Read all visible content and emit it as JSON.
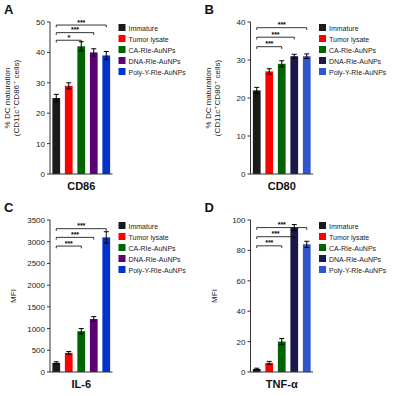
{
  "chart_data": [
    {
      "type": "bar",
      "title": "A",
      "xlabel": "CD86",
      "ylabel": "% DC maturation\n(CD11c⁺CD86⁺ cells)",
      "categories": [
        "Immature",
        "Tumor lysate",
        "CA-RIe-AuNPs",
        "DNA-RIe-AuNPs",
        "Poly-Y-RIe-AuNPs"
      ],
      "values": [
        25,
        29,
        42,
        40,
        39
      ],
      "errors": [
        1.2,
        1.0,
        1.5,
        1.2,
        1.3
      ],
      "colors": [
        "#1a1a1a",
        "#ff0000",
        "#006400",
        "#5c0075",
        "#0033cc"
      ],
      "ylim": [
        0,
        50
      ],
      "yticks": [
        0,
        10,
        20,
        30,
        40,
        50
      ],
      "annotations": [
        {
          "label": "*",
          "y": 44,
          "from": "Immature",
          "to": "CA-RIe-AuNPs"
        },
        {
          "label": "***",
          "y": 46.5,
          "from": "Immature",
          "to": "DNA-RIe-AuNPs"
        },
        {
          "label": "***",
          "y": 49,
          "from": "Immature",
          "to": "Poly-Y-RIe-AuNPs"
        }
      ],
      "legend": "right",
      "grid": false,
      "tick_labels": "y"
    },
    {
      "type": "bar",
      "title": "B",
      "xlabel": "CD80",
      "ylabel": "% DC maturation\n(CD11c⁺CD80⁺ cells)",
      "categories": [
        "Immature",
        "Tumor lysate",
        "CA-RIe-AuNPs",
        "DNA-RIe-AuNPs",
        "Poly-Y-RIe-AuNPs"
      ],
      "values": [
        22,
        27,
        29,
        31,
        31
      ],
      "errors": [
        0.8,
        0.7,
        0.8,
        0.5,
        0.6
      ],
      "colors": [
        "#1a1a1a",
        "#ff0000",
        "#006400",
        "#1a1a4a",
        "#3355cc"
      ],
      "ylim": [
        0,
        40
      ],
      "yticks": [
        0,
        10,
        20,
        30,
        40
      ],
      "annotations": [
        {
          "label": "***",
          "y": 33.5,
          "from": "Immature",
          "to": "CA-RIe-AuNPs"
        },
        {
          "label": "***",
          "y": 36,
          "from": "Immature",
          "to": "DNA-RIe-AuNPs"
        },
        {
          "label": "***",
          "y": 38.5,
          "from": "Immature",
          "to": "Poly-Y-RIe-AuNPs"
        }
      ],
      "legend": "right",
      "grid": false,
      "tick_labels": "y"
    },
    {
      "type": "bar",
      "title": "C",
      "xlabel": "IL-6",
      "ylabel": "MFI",
      "categories": [
        "Immature",
        "Tumor lysate",
        "CA-RIe-AuNPs",
        "DNA-RIe-AuNPs",
        "Poly-Y-RIe-AuNPs"
      ],
      "values": [
        210,
        440,
        940,
        1220,
        3100
      ],
      "errors": [
        25,
        30,
        60,
        55,
        130
      ],
      "colors": [
        "#1a1a1a",
        "#ff0000",
        "#006400",
        "#5c0075",
        "#0033cc"
      ],
      "ylim": [
        0,
        3500
      ],
      "yticks": [
        0,
        500,
        1000,
        1500,
        2000,
        2500,
        3000,
        3500
      ],
      "annotations": [
        {
          "label": "***",
          "y": 2900,
          "from": "Immature",
          "to": "CA-RIe-AuNPs"
        },
        {
          "label": "***",
          "y": 3100,
          "from": "Immature",
          "to": "DNA-RIe-AuNPs"
        },
        {
          "label": "***",
          "y": 3300,
          "from": "Immature",
          "to": "Poly-Y-RIe-AuNPs"
        }
      ],
      "legend": "right",
      "grid": false,
      "tick_labels": "y"
    },
    {
      "type": "bar",
      "title": "D",
      "xlabel": "TNF-α",
      "ylabel": "MFI",
      "categories": [
        "Immature",
        "Tumor lysate",
        "CA-RIe-AuNPs",
        "DNA-RIe-AuNPs",
        "Poly-Y-RIe-AuNPs"
      ],
      "values": [
        2,
        6,
        20,
        95,
        84
      ],
      "errors": [
        0.5,
        1,
        2,
        2,
        2
      ],
      "colors": [
        "#1a1a1a",
        "#ff0000",
        "#006400",
        "#1a1a4a",
        "#3355cc"
      ],
      "ylim": [
        0,
        100
      ],
      "yticks": [
        0,
        20,
        40,
        60,
        80,
        100
      ],
      "annotations": [
        {
          "label": "***",
          "y": 83,
          "from": "Immature",
          "to": "CA-RIe-AuNPs"
        },
        {
          "label": "***",
          "y": 89,
          "from": "Immature",
          "to": "DNA-RIe-AuNPs"
        },
        {
          "label": "***",
          "y": 95,
          "from": "Immature",
          "to": "Poly-Y-RIe-AuNPs"
        }
      ],
      "legend": "right",
      "grid": false,
      "tick_labels": "y"
    }
  ]
}
